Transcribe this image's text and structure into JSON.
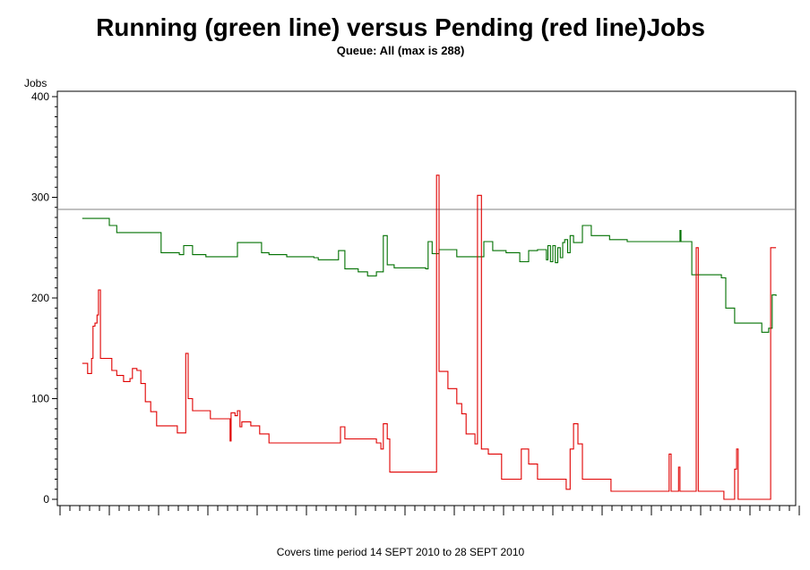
{
  "chart_data": {
    "type": "line",
    "title": "Running (green line) versus Pending (red line)Jobs",
    "subtitle": "Queue: All (max is 288)",
    "ylabel": "Jobs",
    "xlabel": "Covers time period 14 SEPT 2010 to 28 SEPT 2010",
    "ylim": [
      -6,
      405
    ],
    "xlim": [
      0,
      15
    ],
    "x_units": "days since start",
    "yticks": [
      0,
      100,
      200,
      300,
      400
    ],
    "reference_line": {
      "value": 288,
      "color": "#808080"
    },
    "grid": false,
    "series": [
      {
        "name": "Running",
        "color": "#007000",
        "points": [
          [
            0.45,
            279
          ],
          [
            0.96,
            279
          ],
          [
            1.0,
            272
          ],
          [
            1.15,
            265
          ],
          [
            1.93,
            265
          ],
          [
            2.05,
            245
          ],
          [
            2.42,
            243
          ],
          [
            2.51,
            252
          ],
          [
            2.69,
            243
          ],
          [
            2.96,
            241
          ],
          [
            3.55,
            241
          ],
          [
            3.6,
            255
          ],
          [
            4.05,
            255
          ],
          [
            4.09,
            245
          ],
          [
            4.24,
            243
          ],
          [
            4.6,
            241
          ],
          [
            5.15,
            240
          ],
          [
            5.24,
            238
          ],
          [
            5.6,
            238
          ],
          [
            5.65,
            247
          ],
          [
            5.78,
            229
          ],
          [
            5.96,
            229
          ],
          [
            6.05,
            226
          ],
          [
            6.24,
            222
          ],
          [
            6.42,
            226
          ],
          [
            6.56,
            262
          ],
          [
            6.64,
            233
          ],
          [
            6.78,
            230
          ],
          [
            7.42,
            229
          ],
          [
            7.47,
            256
          ],
          [
            7.55,
            244
          ],
          [
            7.69,
            248
          ],
          [
            8.05,
            241
          ],
          [
            8.42,
            241
          ],
          [
            8.6,
            256
          ],
          [
            8.78,
            247
          ],
          [
            9.05,
            245
          ],
          [
            9.33,
            236
          ],
          [
            9.51,
            247
          ],
          [
            9.69,
            248
          ],
          [
            9.87,
            238
          ],
          [
            9.9,
            252
          ],
          [
            9.95,
            236
          ],
          [
            10.0,
            252
          ],
          [
            10.05,
            235
          ],
          [
            10.1,
            250
          ],
          [
            10.15,
            240
          ],
          [
            10.2,
            255
          ],
          [
            10.24,
            258
          ],
          [
            10.3,
            245
          ],
          [
            10.35,
            262
          ],
          [
            10.42,
            255
          ],
          [
            10.6,
            272
          ],
          [
            10.78,
            262
          ],
          [
            11.15,
            258
          ],
          [
            11.51,
            256
          ],
          [
            12.55,
            256
          ],
          [
            12.58,
            267
          ],
          [
            12.6,
            256
          ],
          [
            12.78,
            256
          ],
          [
            12.82,
            223
          ],
          [
            13.42,
            220
          ],
          [
            13.51,
            190
          ],
          [
            13.69,
            175
          ],
          [
            14.05,
            175
          ],
          [
            14.24,
            166
          ],
          [
            14.38,
            170
          ],
          [
            14.45,
            203
          ],
          [
            14.53,
            202
          ]
        ]
      },
      {
        "name": "Pending",
        "color": "#e00000",
        "points": [
          [
            0.45,
            135
          ],
          [
            0.56,
            125
          ],
          [
            0.64,
            140
          ],
          [
            0.67,
            172
          ],
          [
            0.71,
            175
          ],
          [
            0.75,
            183
          ],
          [
            0.78,
            208
          ],
          [
            0.82,
            140
          ],
          [
            0.96,
            140
          ],
          [
            1.05,
            128
          ],
          [
            1.15,
            123
          ],
          [
            1.29,
            117
          ],
          [
            1.42,
            120
          ],
          [
            1.47,
            130
          ],
          [
            1.56,
            128
          ],
          [
            1.64,
            115
          ],
          [
            1.73,
            97
          ],
          [
            1.84,
            87
          ],
          [
            1.96,
            73
          ],
          [
            2.33,
            73
          ],
          [
            2.38,
            66
          ],
          [
            2.51,
            66
          ],
          [
            2.55,
            145
          ],
          [
            2.6,
            100
          ],
          [
            2.69,
            88
          ],
          [
            2.96,
            88
          ],
          [
            3.05,
            80
          ],
          [
            3.42,
            80
          ],
          [
            3.45,
            58
          ],
          [
            3.47,
            86
          ],
          [
            3.55,
            83
          ],
          [
            3.6,
            88
          ],
          [
            3.65,
            72
          ],
          [
            3.69,
            77
          ],
          [
            3.87,
            73
          ],
          [
            4.05,
            65
          ],
          [
            4.24,
            56
          ],
          [
            5.6,
            56
          ],
          [
            5.69,
            72
          ],
          [
            5.78,
            60
          ],
          [
            6.42,
            56
          ],
          [
            6.51,
            50
          ],
          [
            6.56,
            75
          ],
          [
            6.64,
            60
          ],
          [
            6.69,
            27
          ],
          [
            7.6,
            27
          ],
          [
            7.64,
            322
          ],
          [
            7.69,
            127
          ],
          [
            7.87,
            110
          ],
          [
            8.05,
            95
          ],
          [
            8.15,
            85
          ],
          [
            8.24,
            65
          ],
          [
            8.42,
            55
          ],
          [
            8.47,
            302
          ],
          [
            8.55,
            50
          ],
          [
            8.69,
            45
          ],
          [
            8.96,
            20
          ],
          [
            9.29,
            20
          ],
          [
            9.36,
            50
          ],
          [
            9.51,
            35
          ],
          [
            9.69,
            20
          ],
          [
            10.24,
            20
          ],
          [
            10.27,
            10
          ],
          [
            10.35,
            50
          ],
          [
            10.42,
            75
          ],
          [
            10.51,
            55
          ],
          [
            10.6,
            20
          ],
          [
            11.15,
            20
          ],
          [
            11.18,
            8
          ],
          [
            12.33,
            8
          ],
          [
            12.36,
            45
          ],
          [
            12.4,
            8
          ],
          [
            12.51,
            8
          ],
          [
            12.55,
            32
          ],
          [
            12.58,
            8
          ],
          [
            12.87,
            8
          ],
          [
            12.91,
            250
          ],
          [
            12.95,
            8
          ],
          [
            13.42,
            8
          ],
          [
            13.47,
            0
          ],
          [
            13.6,
            0
          ],
          [
            13.69,
            30
          ],
          [
            13.73,
            50
          ],
          [
            13.76,
            0
          ],
          [
            14.38,
            0
          ],
          [
            14.42,
            250
          ],
          [
            14.53,
            250
          ]
        ]
      }
    ]
  }
}
